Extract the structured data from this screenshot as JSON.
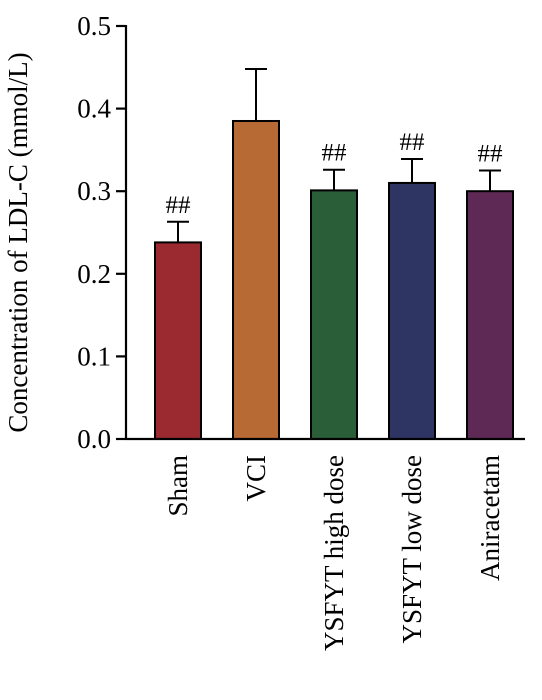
{
  "chart_data": {
    "type": "bar",
    "title": "",
    "xlabel": "",
    "ylabel": "Concentration of LDL-C (mmol/L)",
    "ylim": [
      0,
      0.5
    ],
    "yticks": [
      0.0,
      0.1,
      0.2,
      0.3,
      0.4,
      0.5
    ],
    "ytick_labels": [
      "0.0",
      "0.1",
      "0.2",
      "0.3",
      "0.4",
      "0.5"
    ],
    "categories": [
      "Sham",
      "VCI",
      "YSFYT high dose",
      "YSFYT low dose",
      "Aniracetam"
    ],
    "values": [
      0.238,
      0.385,
      0.301,
      0.31,
      0.3
    ],
    "errors": [
      0.025,
      0.063,
      0.025,
      0.029,
      0.025
    ],
    "annotations": [
      "##",
      "",
      "##",
      "##",
      "##"
    ],
    "colors": [
      "#9a2a30",
      "#b86a35",
      "#2a5e38",
      "#2f3563",
      "#5e2a55"
    ],
    "grid": false,
    "legend": "none"
  }
}
